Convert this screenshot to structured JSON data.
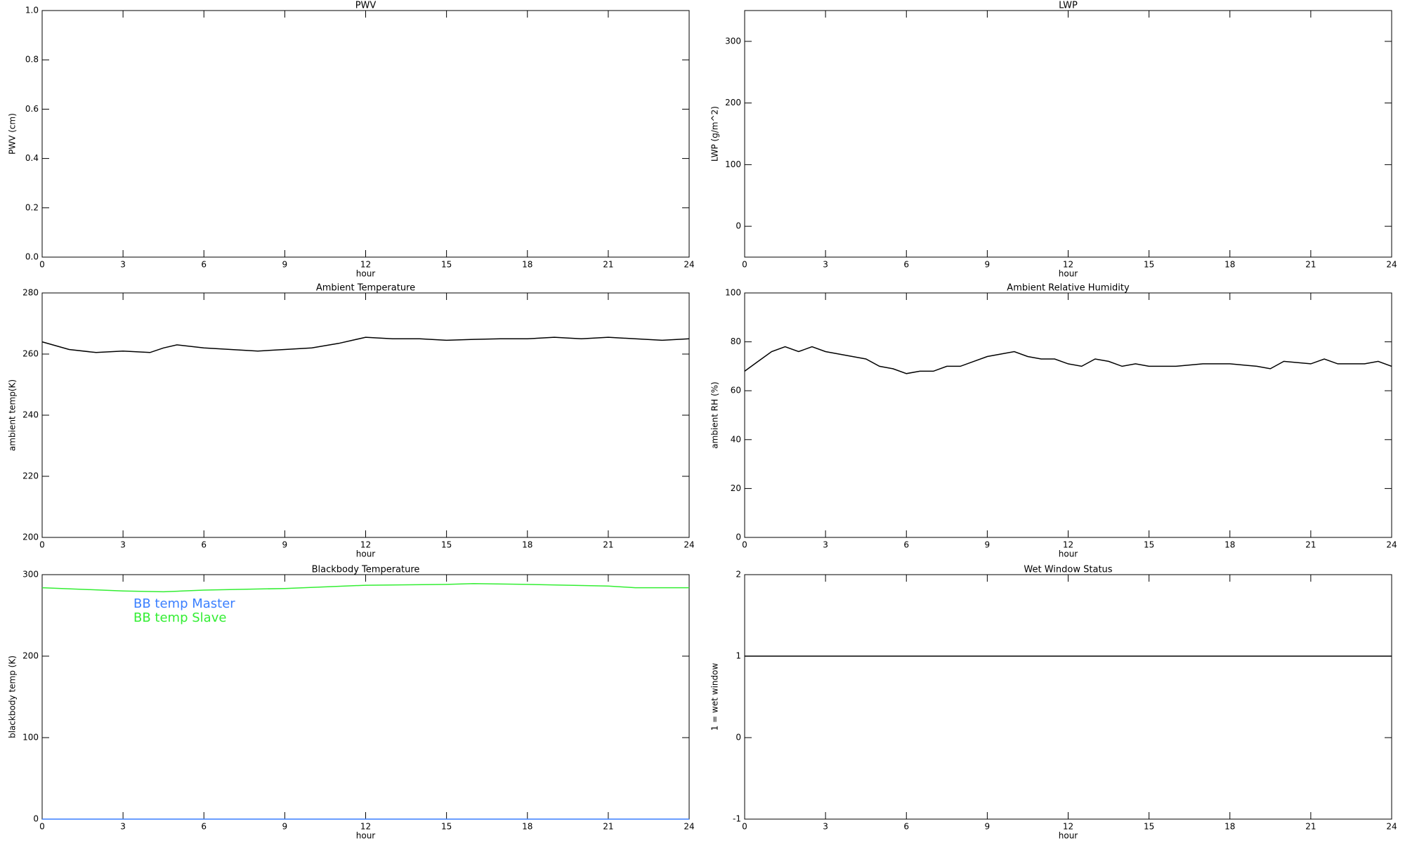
{
  "chart_data": [
    {
      "type": "line",
      "title": "PWV",
      "xlabel": "hour",
      "ylabel": "PWV (cm)",
      "xlim": [
        0,
        24
      ],
      "xticks": [
        0,
        3,
        6,
        9,
        12,
        15,
        18,
        21,
        24
      ],
      "ylim": [
        0,
        1
      ],
      "yticks": [
        {
          "value": 0,
          "label": "0.0"
        },
        0.2,
        0.4,
        0.6,
        0.8,
        {
          "value": 1,
          "label": "1.0"
        }
      ],
      "series": []
    },
    {
      "type": "line",
      "title": "LWP",
      "xlabel": "hour",
      "ylabel": "LWP (g/m^2)",
      "xlim": [
        0,
        24
      ],
      "xticks": [
        0,
        3,
        6,
        9,
        12,
        15,
        18,
        21,
        24
      ],
      "ylim": [
        -50,
        350
      ],
      "yticks": [
        0,
        100,
        200,
        300
      ],
      "series": []
    },
    {
      "type": "line",
      "title": "Ambient Temperature",
      "xlabel": "hour",
      "ylabel": "ambient temp(K)",
      "xlim": [
        0,
        24
      ],
      "xticks": [
        0,
        3,
        6,
        9,
        12,
        15,
        18,
        21,
        24
      ],
      "ylim": [
        200,
        280
      ],
      "yticks": [
        200,
        220,
        240,
        260,
        280
      ],
      "series": [
        {
          "color": "#000000",
          "x": [
            0,
            1,
            2,
            3,
            4,
            4.5,
            5,
            6,
            7,
            8,
            9,
            10,
            11,
            12,
            13,
            14,
            15,
            16,
            17,
            18,
            19,
            20,
            21,
            22,
            23,
            24
          ],
          "values": [
            264,
            261.5,
            260.5,
            261,
            260.5,
            262,
            263,
            262,
            261.5,
            261,
            261.5,
            262,
            263.5,
            265.5,
            265,
            265,
            264.5,
            264.8,
            265,
            265,
            265.5,
            265,
            265.5,
            265,
            264.5,
            265
          ]
        }
      ]
    },
    {
      "type": "line",
      "title": "Ambient Relative Humidity",
      "xlabel": "hour",
      "ylabel": "ambient RH (%)",
      "xlim": [
        0,
        24
      ],
      "xticks": [
        0,
        3,
        6,
        9,
        12,
        15,
        18,
        21,
        24
      ],
      "ylim": [
        0,
        100
      ],
      "yticks": [
        0,
        20,
        40,
        60,
        80,
        100
      ],
      "series": [
        {
          "color": "#000000",
          "x": [
            0,
            0.5,
            1,
            1.5,
            2,
            2.5,
            3,
            3.5,
            4,
            4.5,
            5,
            5.5,
            6,
            6.5,
            7,
            7.5,
            8,
            8.5,
            9,
            9.5,
            10,
            10.5,
            11,
            11.5,
            12,
            12.5,
            13,
            13.5,
            14,
            14.5,
            15,
            16,
            17,
            18,
            19,
            19.5,
            20,
            21,
            21.5,
            22,
            23,
            23.5,
            24
          ],
          "values": [
            68,
            72,
            76,
            78,
            76,
            78,
            76,
            75,
            74,
            73,
            70,
            69,
            67,
            68,
            68,
            70,
            70,
            72,
            74,
            75,
            76,
            74,
            73,
            73,
            71,
            70,
            73,
            72,
            70,
            71,
            70,
            70,
            71,
            71,
            70,
            69,
            72,
            71,
            73,
            71,
            71,
            72,
            70
          ]
        }
      ]
    },
    {
      "type": "line",
      "title": "Blackbody Temperature",
      "xlabel": "hour",
      "ylabel": "blackbody temp (K)",
      "xlim": [
        0,
        24
      ],
      "xticks": [
        0,
        3,
        6,
        9,
        12,
        15,
        18,
        21,
        24
      ],
      "ylim": [
        0,
        300
      ],
      "yticks": [
        0,
        100,
        200,
        300
      ],
      "legend": "upper left",
      "series": [
        {
          "name": "BB temp Master",
          "color": "#3a7fff",
          "x": [
            0,
            3,
            6,
            9,
            12,
            15,
            18,
            21,
            24
          ],
          "values": [
            0,
            0,
            0,
            0,
            0,
            0,
            0,
            0,
            0
          ]
        },
        {
          "name": "BB temp Slave",
          "color": "#33ee33",
          "x": [
            0,
            3,
            4.5,
            6,
            9,
            12,
            15,
            16,
            18,
            21,
            22,
            24
          ],
          "values": [
            284,
            280,
            279,
            281,
            283,
            287,
            288,
            289,
            288,
            286,
            284,
            284
          ]
        }
      ]
    },
    {
      "type": "line",
      "title": "Wet Window Status",
      "xlabel": "hour",
      "ylabel": "1 = wet window",
      "xlim": [
        0,
        24
      ],
      "xticks": [
        0,
        3,
        6,
        9,
        12,
        15,
        18,
        21,
        24
      ],
      "ylim": [
        -1,
        2
      ],
      "yticks": [
        -1,
        0,
        1,
        2
      ],
      "series": [
        {
          "color": "#000000",
          "x": [
            0,
            24
          ],
          "values": [
            1,
            1
          ]
        }
      ]
    }
  ]
}
